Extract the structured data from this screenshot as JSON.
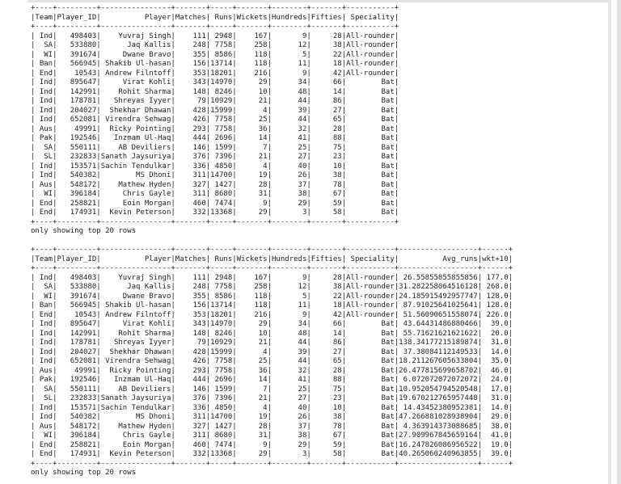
{
  "chrome": {
    "cell_top_border_color": "#e2e2e2",
    "inner_scrollbar_color": "#e4e4e4",
    "outer_scrollbar_color": "#e0e0e0"
  },
  "console": {
    "text_color": "#1f1f1f",
    "outputs": [
      {
        "columns": [
          "Team",
          "Player_ID",
          "Player",
          "Matches",
          "Runs",
          "Wickets",
          "Hundreds",
          "Fifties",
          "Speciality"
        ],
        "rows": [
          [
            "Ind",
            "498403",
            "Yuvraj Singh",
            "111",
            "2948",
            "167",
            "9",
            "28",
            "All-rounder"
          ],
          [
            "SA",
            "533880",
            "Jaq Kallis",
            "248",
            "7758",
            "258",
            "12",
            "38",
            "All-rounder"
          ],
          [
            "WI",
            "391674",
            "Dwane Bravo",
            "355",
            "8586",
            "118",
            "5",
            "22",
            "All-rounder"
          ],
          [
            "Ban",
            "566945",
            "Shakib Ul-hasan",
            "156",
            "13714",
            "118",
            "11",
            "18",
            "All-rounder"
          ],
          [
            "End",
            "10543",
            "Andrew Filntoff",
            "353",
            "18201",
            "216",
            "9",
            "42",
            "All-rounder"
          ],
          [
            "Ind",
            "895647",
            "Virat Kohli",
            "343",
            "14970",
            "29",
            "34",
            "66",
            "Bat"
          ],
          [
            "Ind",
            "142991",
            "Rohit Sharma",
            "148",
            "8246",
            "10",
            "48",
            "14",
            "Bat"
          ],
          [
            "Ind",
            "178781",
            "Shreyas Iyyer",
            "79",
            "10929",
            "21",
            "44",
            "86",
            "Bat"
          ],
          [
            "Ind",
            "204027",
            "Shekhar Dhawan",
            "428",
            "15999",
            "4",
            "39",
            "27",
            "Bat"
          ],
          [
            "Ind",
            "652081",
            "Virendra Sehwag",
            "426",
            "7758",
            "25",
            "44",
            "65",
            "Bat"
          ],
          [
            "Aus",
            "49991",
            "Ricky Pointing",
            "293",
            "7758",
            "36",
            "32",
            "28",
            "Bat"
          ],
          [
            "Pak",
            "192546",
            "Inzmam Ul-Haq",
            "444",
            "2696",
            "14",
            "41",
            "88",
            "Bat"
          ],
          [
            "SA",
            "550111",
            "AB Deviliers",
            "146",
            "1599",
            "7",
            "25",
            "75",
            "Bat"
          ],
          [
            "SL",
            "232833",
            "Sanath Jaysuriya",
            "376",
            "7396",
            "21",
            "27",
            "23",
            "Bat"
          ],
          [
            "Ind",
            "153571",
            "Sachin Tendulkar",
            "336",
            "4850",
            "4",
            "40",
            "10",
            "Bat"
          ],
          [
            "Ind",
            "540382",
            "MS Dhoni",
            "311",
            "14700",
            "19",
            "26",
            "38",
            "Bat"
          ],
          [
            "Aus",
            "548172",
            "Mathew Hyden",
            "327",
            "1427",
            "28",
            "37",
            "78",
            "Bat"
          ],
          [
            "WI",
            "396184",
            "Chris Gayle",
            "311",
            "8680",
            "31",
            "38",
            "67",
            "Bat"
          ],
          [
            "End",
            "258821",
            "Eoin Morgan",
            "460",
            "7474",
            "9",
            "29",
            "59",
            "Bat"
          ],
          [
            "End",
            "174931",
            "Kevin Peterson",
            "332",
            "13368",
            "29",
            "3",
            "58",
            "Bat"
          ]
        ],
        "footer": "only showing top 20 rows"
      },
      {
        "columns": [
          "Team",
          "Player_ID",
          "Player",
          "Matches",
          "Runs",
          "Wickets",
          "Hundreds",
          "Fifties",
          "Speciality",
          "Avg_runs",
          "wkt+10"
        ],
        "rows": [
          [
            "Ind",
            "498403",
            "Yuvraj Singh",
            "111",
            "2948",
            "167",
            "9",
            "28",
            "All-rounder",
            "26.55855855855856",
            "177.0"
          ],
          [
            "SA",
            "533880",
            "Jaq Kallis",
            "248",
            "7758",
            "258",
            "12",
            "38",
            "All-rounder",
            "31.282258064516128",
            "268.0"
          ],
          [
            "WI",
            "391674",
            "Dwane Bravo",
            "355",
            "8586",
            "118",
            "5",
            "22",
            "All-rounder",
            "24.185915492957747",
            "128.0"
          ],
          [
            "Ban",
            "566945",
            "Shakib Ul-hasan",
            "156",
            "13714",
            "118",
            "11",
            "18",
            "All-rounder",
            "87.91025641025641",
            "128.0"
          ],
          [
            "End",
            "10543",
            "Andrew Filntoff",
            "353",
            "18201",
            "216",
            "9",
            "42",
            "All-rounder",
            "51.56090651558074",
            "226.0"
          ],
          [
            "Ind",
            "895647",
            "Virat Kohli",
            "343",
            "14970",
            "29",
            "34",
            "66",
            "Bat",
            "43.64431486880466",
            "39.0"
          ],
          [
            "Ind",
            "142991",
            "Rohit Sharma",
            "148",
            "8246",
            "10",
            "48",
            "14",
            "Bat",
            "55.71621621621622",
            "20.0"
          ],
          [
            "Ind",
            "178781",
            "Shreyas Iyyer",
            "79",
            "10929",
            "21",
            "44",
            "86",
            "Bat",
            "138.34177215189874",
            "31.0"
          ],
          [
            "Ind",
            "204027",
            "Shekhar Dhawan",
            "428",
            "15999",
            "4",
            "39",
            "27",
            "Bat",
            "37.38084112149533",
            "14.0"
          ],
          [
            "Ind",
            "652081",
            "Virendra Sehwag",
            "426",
            "7758",
            "25",
            "44",
            "65",
            "Bat",
            "18.211267605633804",
            "35.0"
          ],
          [
            "Aus",
            "49991",
            "Ricky Pointing",
            "293",
            "7758",
            "36",
            "32",
            "28",
            "Bat",
            "26.477815699658702",
            "46.0"
          ],
          [
            "Pak",
            "192546",
            "Inzmam Ul-Haq",
            "444",
            "2696",
            "14",
            "41",
            "88",
            "Bat",
            "6.072072072072072",
            "24.0"
          ],
          [
            "SA",
            "550111",
            "AB Deviliers",
            "146",
            "1599",
            "7",
            "25",
            "75",
            "Bat",
            "10.952054794520548",
            "17.0"
          ],
          [
            "SL",
            "232833",
            "Sanath Jaysuriya",
            "376",
            "7396",
            "21",
            "27",
            "23",
            "Bat",
            "19.670212765957448",
            "31.0"
          ],
          [
            "Ind",
            "153571",
            "Sachin Tendulkar",
            "336",
            "4850",
            "4",
            "40",
            "10",
            "Bat",
            "14.43452380952381",
            "14.0"
          ],
          [
            "Ind",
            "540382",
            "MS Dhoni",
            "311",
            "14700",
            "19",
            "26",
            "38",
            "Bat",
            "47.266881028938904",
            "29.0"
          ],
          [
            "Aus",
            "548172",
            "Mathew Hyden",
            "327",
            "1427",
            "28",
            "37",
            "78",
            "Bat",
            "4.363914373088685",
            "38.0"
          ],
          [
            "WI",
            "396184",
            "Chris Gayle",
            "311",
            "8680",
            "31",
            "38",
            "67",
            "Bat",
            "27.909967845659164",
            "41.0"
          ],
          [
            "End",
            "258821",
            "Eoin Morgan",
            "460",
            "7474",
            "9",
            "29",
            "59",
            "Bat",
            "16.247826086956522",
            "19.0"
          ],
          [
            "End",
            "174931",
            "Kevin Peterson",
            "332",
            "13368",
            "29",
            "3",
            "58",
            "Bat",
            "40.265060240963855",
            "39.0"
          ]
        ],
        "footer": "only showing top 20 rows"
      }
    ]
  }
}
